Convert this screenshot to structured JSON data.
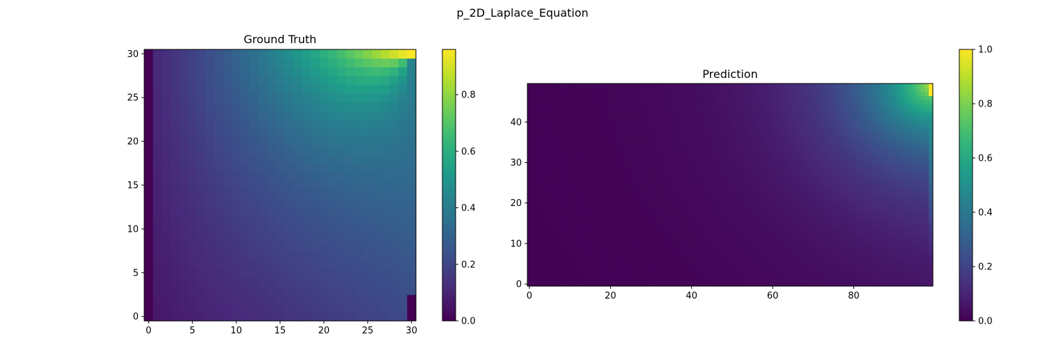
{
  "figure": {
    "suptitle": "p_2D_Laplace_Equation"
  },
  "colormap": "viridis",
  "chart_data": [
    {
      "type": "heatmap",
      "title": "Ground Truth",
      "xlabel": "",
      "ylabel": "",
      "nx": 31,
      "ny": 31,
      "xlim": [
        -0.5,
        30.5
      ],
      "ylim": [
        -0.5,
        30.5
      ],
      "xticks": [
        0,
        5,
        10,
        15,
        20,
        25,
        30
      ],
      "yticks": [
        0,
        5,
        10,
        15,
        20,
        25,
        30
      ],
      "colorbar": {
        "vmin": 0.0,
        "vmax": 0.96,
        "ticks": [
          0.0,
          0.2,
          0.4,
          0.6,
          0.8
        ],
        "tick_labels": [
          "0.0",
          "0.2",
          "0.4",
          "0.6",
          "0.8"
        ]
      },
      "value_range": [
        0.0,
        0.96
      ],
      "grid": false
    },
    {
      "type": "heatmap",
      "title": "Prediction",
      "xlabel": "",
      "ylabel": "",
      "nx": 100,
      "ny": 50,
      "xlim": [
        -0.5,
        99.5
      ],
      "ylim": [
        -0.5,
        49.5
      ],
      "xticks": [
        0,
        20,
        40,
        60,
        80
      ],
      "yticks": [
        0,
        10,
        20,
        30,
        40
      ],
      "colorbar": {
        "vmin": 0.0,
        "vmax": 1.0,
        "ticks": [
          0.0,
          0.2,
          0.4,
          0.6,
          0.8,
          1.0
        ],
        "tick_labels": [
          "0.0",
          "0.2",
          "0.4",
          "0.6",
          "0.8",
          "1.0"
        ]
      },
      "value_range": [
        0.0,
        1.0
      ],
      "grid": false
    }
  ]
}
